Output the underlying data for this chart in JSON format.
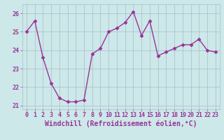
{
  "x": [
    0,
    1,
    2,
    3,
    4,
    5,
    6,
    7,
    8,
    9,
    10,
    11,
    12,
    13,
    14,
    15,
    16,
    17,
    18,
    19,
    20,
    21,
    22,
    23
  ],
  "y": [
    25.0,
    25.6,
    23.6,
    22.2,
    21.4,
    21.2,
    21.2,
    21.3,
    23.8,
    24.1,
    25.0,
    25.2,
    25.5,
    26.1,
    24.8,
    25.6,
    23.7,
    23.9,
    24.1,
    24.3,
    24.3,
    24.6,
    24.0,
    23.9
  ],
  "line_color": "#993399",
  "marker": "D",
  "markersize": 2.5,
  "linewidth": 1.0,
  "xlabel": "Windchill (Refroidissement éolien,°C)",
  "xlabel_fontsize": 7.0,
  "bg_color": "#cce8e8",
  "grid_color": "#aabbd0",
  "tick_color": "#993399",
  "label_color": "#993399",
  "ylim": [
    20.8,
    26.5
  ],
  "xlim": [
    -0.5,
    23.5
  ],
  "yticks": [
    21,
    22,
    23,
    24,
    25,
    26
  ],
  "xticks": [
    0,
    1,
    2,
    3,
    4,
    5,
    6,
    7,
    8,
    9,
    10,
    11,
    12,
    13,
    14,
    15,
    16,
    17,
    18,
    19,
    20,
    21,
    22,
    23
  ],
  "tick_fontsize": 6.0
}
